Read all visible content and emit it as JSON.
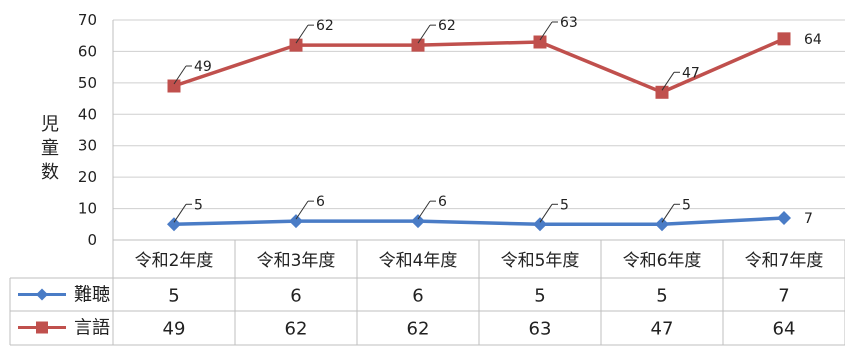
{
  "chart_data": {
    "type": "line",
    "ylabel": "児童数",
    "ylim": [
      0,
      70
    ],
    "yticks": [
      0,
      10,
      20,
      30,
      40,
      50,
      60,
      70
    ],
    "grid": true,
    "legend": "data-table",
    "categories": [
      "令和2年度",
      "令和3年度",
      "令和4年度",
      "令和5年度",
      "令和6年度",
      "令和7年度"
    ],
    "series": [
      {
        "name": "難聴",
        "values": [
          5,
          6,
          6,
          5,
          5,
          7
        ],
        "color": "#4a7cc6",
        "marker": "diamond"
      },
      {
        "name": "言語",
        "values": [
          49,
          62,
          62,
          63,
          47,
          64
        ],
        "color": "#c0504d",
        "marker": "square"
      }
    ]
  }
}
